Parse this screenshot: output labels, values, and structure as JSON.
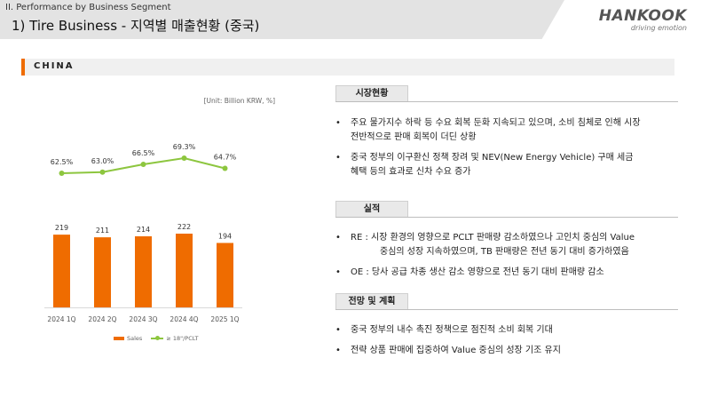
{
  "header": {
    "section": "II. Performance by Business Segment",
    "title": "1) Tire Business - 지역별 매출현황 (중국)"
  },
  "logo": {
    "brand": "HANKOOK",
    "tagline": "driving emotion"
  },
  "region": {
    "title": "CHINA"
  },
  "unit_note": "[Unit: Billion KRW, %]",
  "colors": {
    "accent": "#ef6c00",
    "line": "#8dc63f"
  },
  "chart_data": {
    "type": "bar",
    "categories": [
      "2024 1Q",
      "2024 2Q",
      "2024 3Q",
      "2024 4Q",
      "2025 1Q"
    ],
    "series": [
      {
        "name": "Sales",
        "type": "bar",
        "values": [
          219,
          211,
          214,
          222,
          194
        ],
        "labels": [
          "219",
          "211",
          "214",
          "222",
          "194"
        ]
      },
      {
        "name": "≥ 18\"/PCLT",
        "type": "line",
        "values": [
          62.5,
          63.0,
          66.5,
          69.3,
          64.7
        ],
        "labels": [
          "62.5%",
          "63.0%",
          "66.5%",
          "69.3%",
          "64.7%"
        ]
      }
    ],
    "legend": {
      "position": "bottom"
    },
    "grid": false
  },
  "sections": [
    {
      "heading": "시장현황",
      "bullets": [
        {
          "marker": "•",
          "lines": [
            "주요 물가지수 하락 등 수요 회복 둔화 지속되고 있으며, 소비 침체로 인해 시장",
            "전반적으로 판매 회복이 더딘 상황"
          ]
        },
        {
          "marker": "•",
          "lines": [
            "중국 정부의 이구환신 정책 장려 및 NEV(New Energy Vehicle) 구매 세금",
            "혜택 등의 효과로 신차 수요 증가"
          ]
        }
      ]
    },
    {
      "heading": "실적",
      "bullets": [
        {
          "marker": "•",
          "lines": [
            "RE : 시장 환경의 영향으로 PCLT 판매량 감소하였으나 고인치 중심의 Value",
            "중심의 성장 지속하였으며, TB 판매량은 전년 동기 대비 증가하였음"
          ]
        },
        {
          "marker": "•",
          "lines": [
            "OE : 당사 공급 차종 생산 감소 영향으로 전년 동기 대비 판매량 감소"
          ]
        }
      ]
    },
    {
      "heading": "전망 및 계획",
      "bullets": [
        {
          "marker": "•",
          "lines": [
            "중국 정부의 내수 촉진 정책으로 점진적 소비 회복 기대"
          ]
        },
        {
          "marker": "•",
          "lines": [
            "전략 상품 판매에 집중하여 Value 중심의 성장 기조 유지"
          ]
        }
      ]
    }
  ]
}
